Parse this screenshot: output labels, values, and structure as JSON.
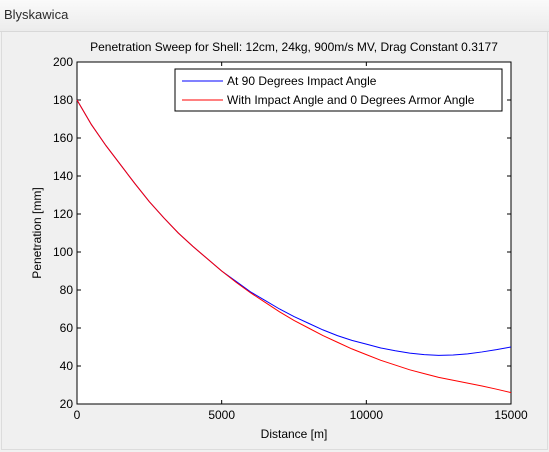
{
  "window": {
    "title": "Blyskawica"
  },
  "chart_data": {
    "type": "line",
    "title": "Penetration Sweep for Shell: 12cm, 24kg, 900m/s MV, Drag Constant 0.3177",
    "xlabel": "Distance [m]",
    "ylabel": "Penetration [mm]",
    "xlim": [
      0,
      15000
    ],
    "ylim": [
      20,
      200
    ],
    "xticks": [
      0,
      5000,
      10000,
      15000
    ],
    "yticks": [
      20,
      40,
      60,
      80,
      100,
      120,
      140,
      160,
      180,
      200
    ],
    "xtick_labels": [
      "0",
      "5000",
      "10000",
      "15000"
    ],
    "ytick_labels": [
      "20",
      "40",
      "60",
      "80",
      "100",
      "120",
      "140",
      "160",
      "180",
      "200"
    ],
    "grid": false,
    "legend_position": "top-right",
    "series": [
      {
        "name": "At 90 Degrees Impact Angle",
        "color": "#0000ff",
        "x": [
          0,
          500,
          1000,
          1500,
          2000,
          2500,
          3000,
          3500,
          4000,
          4500,
          5000,
          5500,
          6000,
          6500,
          7000,
          7500,
          8000,
          8500,
          9000,
          9500,
          10000,
          10500,
          11000,
          11500,
          12000,
          12500,
          13000,
          13500,
          14000,
          14500,
          15000
        ],
        "y": [
          180,
          167,
          156,
          146,
          136,
          126.5,
          118,
          110,
          103,
          96.5,
          90,
          84.5,
          79,
          74.5,
          70,
          66,
          62.5,
          59,
          56,
          53.5,
          51.5,
          49.5,
          48,
          46.8,
          46,
          45.6,
          45.8,
          46.4,
          47.4,
          48.6,
          50
        ]
      },
      {
        "name": "With Impact Angle and 0 Degrees Armor Angle",
        "color": "#ff0000",
        "x": [
          0,
          500,
          1000,
          1500,
          2000,
          2500,
          3000,
          3500,
          4000,
          4500,
          5000,
          5500,
          6000,
          6500,
          7000,
          7500,
          8000,
          8500,
          9000,
          9500,
          10000,
          10500,
          11000,
          11500,
          12000,
          12500,
          13000,
          13500,
          14000,
          14500,
          15000
        ],
        "y": [
          180,
          167,
          156,
          146,
          136,
          126.5,
          118,
          110,
          103,
          96.5,
          90,
          84,
          78.5,
          73.5,
          68.5,
          64,
          60,
          56,
          52.5,
          49,
          46,
          43,
          40.5,
          38,
          36,
          34,
          32.5,
          31,
          29.5,
          27.8,
          26
        ]
      }
    ]
  }
}
